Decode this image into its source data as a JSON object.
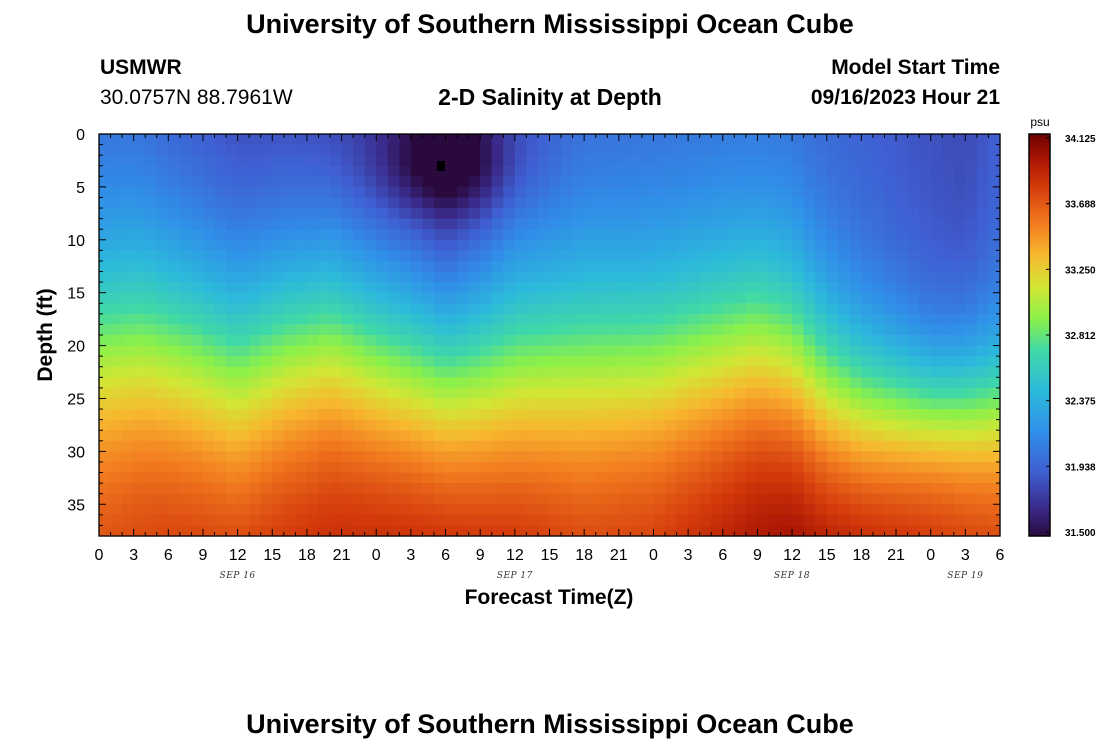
{
  "header": {
    "title": "University of Southern Mississippi Ocean Cube",
    "station_id": "USMWR",
    "coords": "30.0757N  88.7961W",
    "plot_title": "2-D Salinity at Depth",
    "model_start_label": "Model Start Time",
    "model_start_value": "09/16/2023 Hour 21",
    "repeat_title": "University of Southern Mississippi Ocean Cube"
  },
  "colors": {
    "low": "#2a0a3e",
    "mid": "#2fb4dd",
    "mid_high": "#a9f03a",
    "high": "#7a0000"
  },
  "chart_data": {
    "type": "heatmap",
    "title": "2-D Salinity at Depth",
    "xlabel": "Forecast Time(Z)",
    "ylabel": "Depth (ft)",
    "x_ticks": [
      "0",
      "3",
      "6",
      "9",
      "12",
      "15",
      "18",
      "21",
      "0",
      "3",
      "6",
      "9",
      "12",
      "15",
      "18",
      "21",
      "0",
      "3",
      "6",
      "9",
      "12",
      "15",
      "18",
      "21",
      "0",
      "3",
      "6"
    ],
    "x_range_hours": [
      0,
      78
    ],
    "date_labels": [
      {
        "label": "SEP 16",
        "hour": 12
      },
      {
        "label": "SEP 17",
        "hour": 36
      },
      {
        "label": "SEP 18",
        "hour": 60
      },
      {
        "label": "SEP 19",
        "hour": 75
      }
    ],
    "y_ticks": [
      0,
      5,
      10,
      15,
      20,
      25,
      30,
      35
    ],
    "ylim": [
      0,
      38
    ],
    "y_inverted": true,
    "colorbar": {
      "unit": "psu",
      "min": 31.5,
      "max": 34.125,
      "labels": [
        "34.125",
        "33.688",
        "33.250",
        "32.812",
        "32.375",
        "31.938",
        "31.500"
      ]
    },
    "salinity_summary": {
      "surface_range": [
        31.5,
        32.0
      ],
      "bottom_range": [
        33.8,
        34.2
      ],
      "minimum_near": {
        "hour": 30,
        "depth_ft": 3,
        "psu": 31.5
      },
      "maximum_near": {
        "hour": 59,
        "depth_ft": 36,
        "psu": 34.2
      }
    }
  }
}
